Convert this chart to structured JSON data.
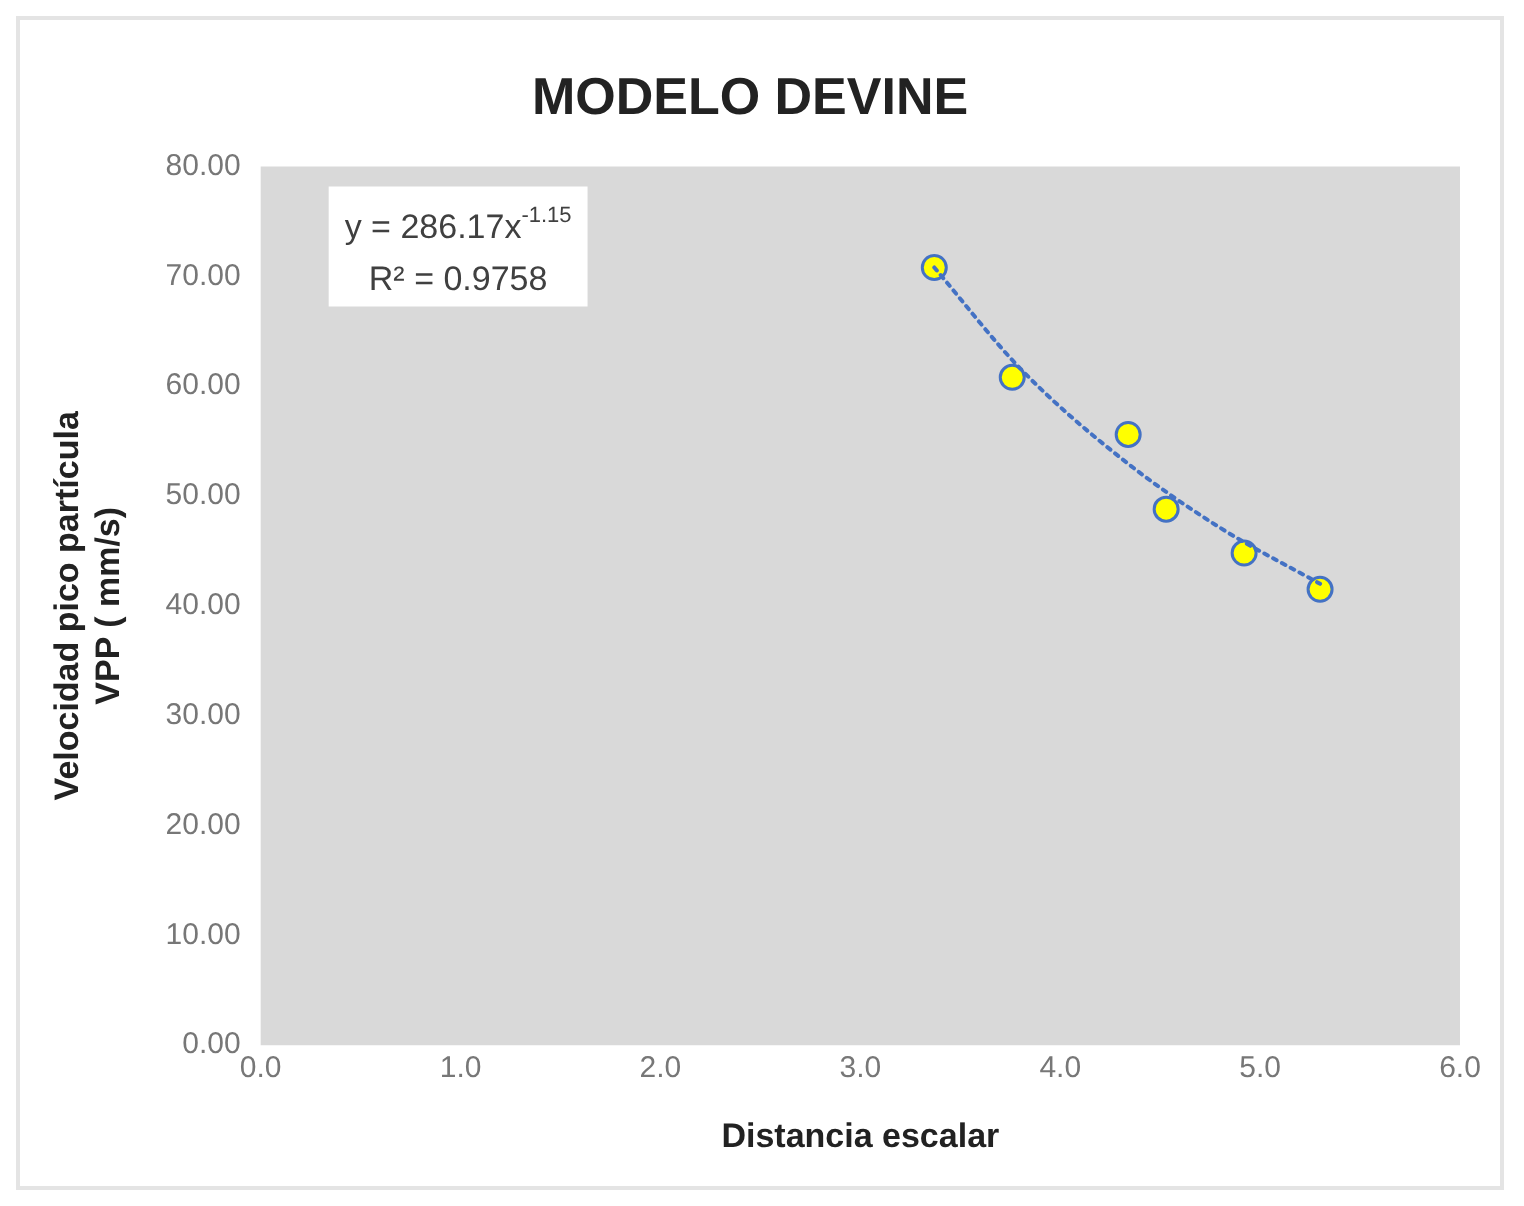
{
  "chart_data": {
    "type": "scatter",
    "title": "MODELO DEVINE",
    "xlabel": "Distancia escalar",
    "ylabel": "Velocidad pico partícula\nVPP ( mm/s)",
    "x": [
      3.37,
      3.76,
      4.34,
      4.53,
      4.92,
      5.3
    ],
    "series": [
      {
        "color": "#ffff00",
        "values": [
          70.8,
          60.8,
          55.6,
          48.8,
          44.8,
          41.5
        ]
      },
      {
        "type": "line",
        "color": "#4472c4",
        "line_style": "dotted",
        "marker": "none",
        "x": [
          3.37,
          3.8,
          4.3,
          4.8,
          5.3
        ],
        "values": [
          70.8,
          61.6,
          53.5,
          47.1,
          42.0
        ]
      }
    ],
    "marker": "circle",
    "grid": false,
    "legend": false,
    "annotations": [
      "y = 286.17x$^{-1.15}$",
      "R² = 0.9758"
    ],
    "xlim": [
      0,
      6
    ],
    "xticks": [
      {
        "value": 0,
        "label": "0.0"
      },
      {
        "value": 1,
        "label": "1.0"
      },
      {
        "value": 2,
        "label": "2.0"
      },
      {
        "value": 3,
        "label": "3.0"
      },
      {
        "value": 4,
        "label": "4.0"
      },
      {
        "value": 5,
        "label": "5.0"
      },
      {
        "value": 6,
        "label": "6.0"
      }
    ],
    "ylim": [
      0,
      80
    ],
    "yticks": [
      {
        "value": 0,
        "label": "0.00"
      },
      {
        "value": 10,
        "label": "10.00"
      },
      {
        "value": 20,
        "label": "20.00"
      },
      {
        "value": 30,
        "label": "30.00"
      },
      {
        "value": 40,
        "label": "40.00"
      },
      {
        "value": 50,
        "label": "50.00"
      },
      {
        "value": 60,
        "label": "60.00"
      },
      {
        "value": 70,
        "label": "70.00"
      },
      {
        "value": 80,
        "label": "80.00"
      }
    ]
  }
}
